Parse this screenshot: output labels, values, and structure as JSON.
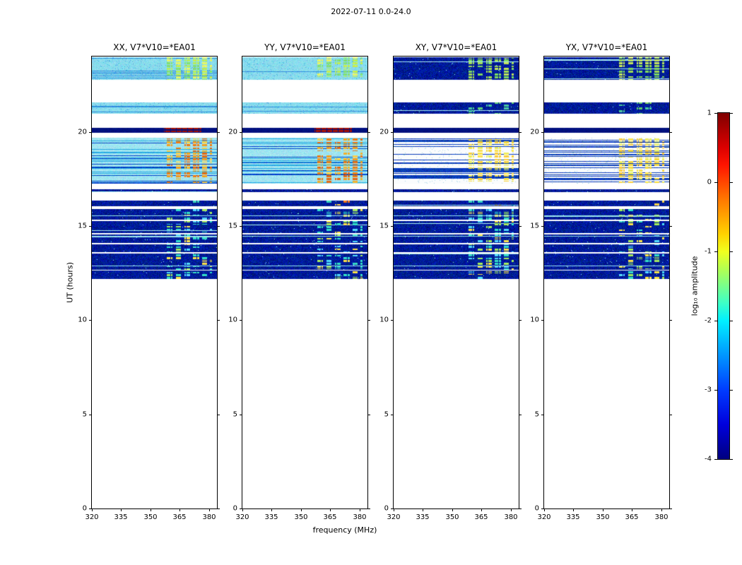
{
  "chart_data": {
    "type": "heatmap",
    "title": "2022-07-11 0.0-24.0",
    "xlabel": "frequency (MHz)",
    "ylabel": "UT (hours)",
    "xlim": [
      320,
      384
    ],
    "ylim": [
      0,
      24
    ],
    "xticks": [
      320,
      335,
      350,
      365,
      380
    ],
    "yticks": [
      0,
      5,
      10,
      15,
      20
    ],
    "grid": false,
    "panels": [
      {
        "title": "XX, V7*V10=*EA01",
        "group": "parallel"
      },
      {
        "title": "YY, V7*V10=*EA01",
        "group": "parallel"
      },
      {
        "title": "XY, V7*V10=*EA01",
        "group": "cross"
      },
      {
        "title": "YX, V7*V10=*EA01",
        "group": "cross"
      }
    ],
    "colorbar": {
      "label": "log₁₀ amplitude",
      "ticks": [
        1,
        0,
        -1,
        -2,
        -3,
        -4
      ],
      "vmin": -4,
      "vmax": 1,
      "colormap": "jet",
      "stops": [
        {
          "pos": 0,
          "color": "#7f0000"
        },
        {
          "pos": 10,
          "color": "#dc0000"
        },
        {
          "pos": 15,
          "color": "#ff1400"
        },
        {
          "pos": 25,
          "color": "#ff7800"
        },
        {
          "pos": 35,
          "color": "#ffd200"
        },
        {
          "pos": 40,
          "color": "#f0ff1e"
        },
        {
          "pos": 45,
          "color": "#b4ff50"
        },
        {
          "pos": 50,
          "color": "#78ff8c"
        },
        {
          "pos": 55,
          "color": "#3cffc8"
        },
        {
          "pos": 60,
          "color": "#00f0ff"
        },
        {
          "pos": 70,
          "color": "#0096ff"
        },
        {
          "pos": 80,
          "color": "#003cff"
        },
        {
          "pos": 90,
          "color": "#0000dc"
        },
        {
          "pos": 100,
          "color": "#00007f"
        }
      ]
    },
    "rfi_columns_mhz": [
      [
        358.3,
        361.3
      ],
      [
        362.8,
        365.8
      ],
      [
        367.3,
        370.3
      ],
      [
        371.8,
        374.8
      ],
      [
        376.3,
        379.3
      ],
      [
        380.3,
        382.0
      ]
    ],
    "bands": [
      {
        "t": [
          22.75,
          23.95
        ],
        "parallel": "cyan_noise",
        "cross": "dark_noise",
        "rfi": "bright_green"
      },
      {
        "t": [
          20.95,
          21.55
        ],
        "parallel": "cyan_noise",
        "cross": "dark_noise",
        "rfi": "faint_green"
      },
      {
        "t": [
          19.95,
          20.2
        ],
        "parallel": "solid_dark",
        "cross": "solid_dark",
        "rfi": "dark_red"
      },
      {
        "t": [
          17.25,
          19.7
        ],
        "parallel": "cyan_stripes",
        "cross": "white_stripes",
        "rfi": "warm"
      },
      {
        "t": [
          16.8,
          16.95
        ],
        "parallel": "dark_noise",
        "cross": "dark_noise",
        "rfi": null
      },
      {
        "t": [
          16.05,
          16.35
        ],
        "parallel": "dark_noise",
        "cross": "dark_noise",
        "rfi": "specks"
      },
      {
        "t": [
          12.2,
          15.9
        ],
        "parallel": "dark_noise",
        "cross": "dark_noise",
        "rfi": "mixed",
        "white_gaps": [
          [
            12.62,
            12.68
          ],
          [
            13.52,
            13.6
          ],
          [
            14.02,
            14.1
          ],
          [
            14.55,
            14.62
          ],
          [
            15.28,
            15.35
          ]
        ],
        "bright_lines": [
          [
            12.85,
            12.9
          ],
          [
            14.42,
            14.47
          ],
          [
            15.52,
            15.56
          ]
        ]
      }
    ],
    "rfi_palettes": {
      "bright_green": {
        "parallel": [
          "#b8ef5a",
          "#e8f763",
          "#86e272",
          "#c9f04f"
        ],
        "cross": [
          "#9fdc55",
          "#c4e35c",
          "#7fd860"
        ],
        "fill": 0.8
      },
      "faint_green": {
        "parallel": null,
        "cross": [
          "#5ecf6e",
          "#7fd95f",
          "#49c8a0"
        ],
        "fill": 0.3
      },
      "dark_red": {
        "parallel": [
          "#8b0000",
          "#a51000",
          "#c03000"
        ],
        "cross": null,
        "fill": 0.85,
        "range": [
          357,
          376
        ]
      },
      "warm": {
        "parallel": [
          "#f59f1e",
          "#ef7d12",
          "#ffd24a",
          "#f3b32b",
          "#e86a10"
        ],
        "cross": [
          "#ffe44e",
          "#f5d93f",
          "#eef05e",
          "#ffcf3a"
        ],
        "fill": 0.85
      },
      "specks": {
        "parallel": [
          "#3cd8c0",
          "#ffd24a",
          "#f07818"
        ],
        "cross": [
          "#3cd8c0",
          "#ffd24a"
        ],
        "fill": 0.22
      },
      "mixed": {
        "parallel": [
          "#35e0c8",
          "#52d9ff",
          "#a5ec5c",
          "#ffe34a",
          "#35e0c8"
        ],
        "cross": [
          "#35e0c8",
          "#52d9ff",
          "#a5ec5c",
          "#ffe34a"
        ],
        "fill": 0.5
      }
    }
  }
}
